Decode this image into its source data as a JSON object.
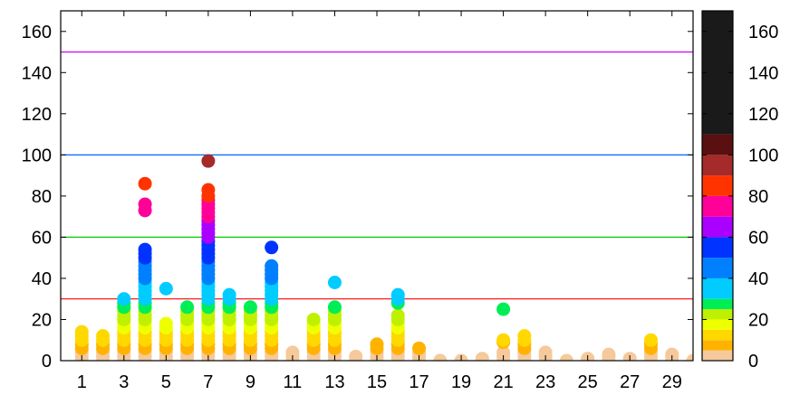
{
  "chart_data": {
    "type": "scatter",
    "title": "",
    "xlabel": "",
    "ylabel": "",
    "xlim": [
      0,
      30
    ],
    "ylim": [
      0,
      170
    ],
    "x_ticks": [
      1,
      3,
      5,
      7,
      9,
      11,
      13,
      15,
      17,
      19,
      21,
      23,
      25,
      27,
      29
    ],
    "y_ticks": [
      0,
      20,
      40,
      60,
      80,
      100,
      120,
      140,
      160
    ],
    "reference_lines": [
      {
        "y": 30,
        "color": "#ff0000"
      },
      {
        "y": 60,
        "color": "#00cc00"
      },
      {
        "y": 100,
        "color": "#0066ff"
      },
      {
        "y": 150,
        "color": "#cc00ff"
      }
    ],
    "color_scale": {
      "min": 0,
      "max": 170,
      "ticks": [
        0,
        20,
        40,
        60,
        80,
        100,
        120,
        140,
        160
      ],
      "bands": [
        {
          "from": 0,
          "to": 5,
          "color": "#f5c99b"
        },
        {
          "from": 5,
          "to": 10,
          "color": "#ffb300"
        },
        {
          "from": 10,
          "to": 15,
          "color": "#ffd800"
        },
        {
          "from": 15,
          "to": 20,
          "color": "#eeff00"
        },
        {
          "from": 20,
          "to": 25,
          "color": "#bff000"
        },
        {
          "from": 25,
          "to": 30,
          "color": "#00ee55"
        },
        {
          "from": 30,
          "to": 40,
          "color": "#00ccff"
        },
        {
          "from": 40,
          "to": 50,
          "color": "#0080ff"
        },
        {
          "from": 50,
          "to": 60,
          "color": "#0033ff"
        },
        {
          "from": 60,
          "to": 70,
          "color": "#aa00ff"
        },
        {
          "from": 70,
          "to": 80,
          "color": "#ff0099"
        },
        {
          "from": 80,
          "to": 90,
          "color": "#ff3300"
        },
        {
          "from": 90,
          "to": 100,
          "color": "#a52a2a"
        },
        {
          "from": 100,
          "to": 110,
          "color": "#5a1010"
        },
        {
          "from": 110,
          "to": 170,
          "color": "#1a1a1a"
        }
      ]
    },
    "columns": [
      {
        "x": 1,
        "y": [
          0,
          2,
          4,
          6,
          8,
          10,
          12,
          14
        ]
      },
      {
        "x": 2,
        "y": [
          0,
          2,
          4,
          6,
          8,
          10,
          12
        ]
      },
      {
        "x": 3,
        "y": [
          0,
          2,
          4,
          6,
          8,
          10,
          12,
          14,
          16,
          18,
          20,
          22,
          24,
          26,
          28,
          30
        ]
      },
      {
        "x": 4,
        "y": [
          0,
          2,
          4,
          6,
          8,
          10,
          12,
          14,
          16,
          18,
          20,
          22,
          24,
          26,
          28,
          30,
          32,
          34,
          36,
          38,
          40,
          42,
          44,
          46,
          48,
          50,
          52,
          54,
          73,
          76,
          86
        ]
      },
      {
        "x": 5,
        "y": [
          0,
          2,
          4,
          6,
          8,
          10,
          12,
          14,
          16,
          18,
          35
        ]
      },
      {
        "x": 6,
        "y": [
          0,
          2,
          4,
          6,
          8,
          10,
          12,
          14,
          16,
          18,
          20,
          22,
          24,
          26
        ]
      },
      {
        "x": 7,
        "y": [
          0,
          2,
          4,
          6,
          8,
          10,
          12,
          14,
          16,
          18,
          20,
          22,
          24,
          26,
          28,
          30,
          32,
          34,
          36,
          38,
          40,
          42,
          44,
          46,
          48,
          50,
          52,
          54,
          56,
          58,
          60,
          62,
          64,
          66,
          68,
          70,
          72,
          74,
          76,
          78,
          80,
          83,
          97
        ]
      },
      {
        "x": 8,
        "y": [
          0,
          2,
          4,
          6,
          8,
          10,
          12,
          14,
          16,
          18,
          20,
          22,
          24,
          26,
          28,
          30,
          32
        ]
      },
      {
        "x": 9,
        "y": [
          0,
          2,
          4,
          6,
          8,
          10,
          12,
          14,
          16,
          18,
          20,
          22,
          24,
          26
        ]
      },
      {
        "x": 10,
        "y": [
          0,
          2,
          4,
          6,
          8,
          10,
          12,
          14,
          16,
          18,
          20,
          22,
          24,
          26,
          28,
          30,
          32,
          34,
          36,
          38,
          40,
          42,
          44,
          46,
          55
        ]
      },
      {
        "x": 11,
        "y": [
          0,
          2,
          4
        ]
      },
      {
        "x": 12,
        "y": [
          0,
          2,
          4,
          6,
          8,
          10,
          12,
          14,
          16,
          18,
          20
        ]
      },
      {
        "x": 13,
        "y": [
          0,
          2,
          4,
          6,
          8,
          10,
          12,
          14,
          16,
          18,
          20,
          22,
          24,
          26,
          38
        ]
      },
      {
        "x": 14,
        "y": [
          0,
          2
        ]
      },
      {
        "x": 15,
        "y": [
          0,
          2,
          4,
          6,
          8
        ]
      },
      {
        "x": 16,
        "y": [
          0,
          2,
          4,
          6,
          8,
          10,
          12,
          14,
          16,
          18,
          20,
          22,
          28,
          30,
          32
        ]
      },
      {
        "x": 17,
        "y": [
          0,
          2,
          4,
          6
        ]
      },
      {
        "x": 18,
        "y": [
          0
        ]
      },
      {
        "x": 19,
        "y": [
          0
        ]
      },
      {
        "x": 20,
        "y": [
          0,
          1
        ]
      },
      {
        "x": 21,
        "y": [
          0,
          2,
          4,
          9,
          10,
          25
        ]
      },
      {
        "x": 22,
        "y": [
          0,
          2,
          4,
          6,
          8,
          10,
          12
        ]
      },
      {
        "x": 23,
        "y": [
          0,
          2,
          4
        ]
      },
      {
        "x": 24,
        "y": [
          0
        ]
      },
      {
        "x": 25,
        "y": [
          0,
          1
        ]
      },
      {
        "x": 26,
        "y": [
          0,
          2,
          3
        ]
      },
      {
        "x": 27,
        "y": [
          0,
          1
        ]
      },
      {
        "x": 28,
        "y": [
          0,
          2,
          4,
          6,
          8,
          10
        ]
      },
      {
        "x": 29,
        "y": [
          0,
          2,
          3
        ]
      },
      {
        "x": 30,
        "y": [
          0
        ]
      }
    ]
  }
}
